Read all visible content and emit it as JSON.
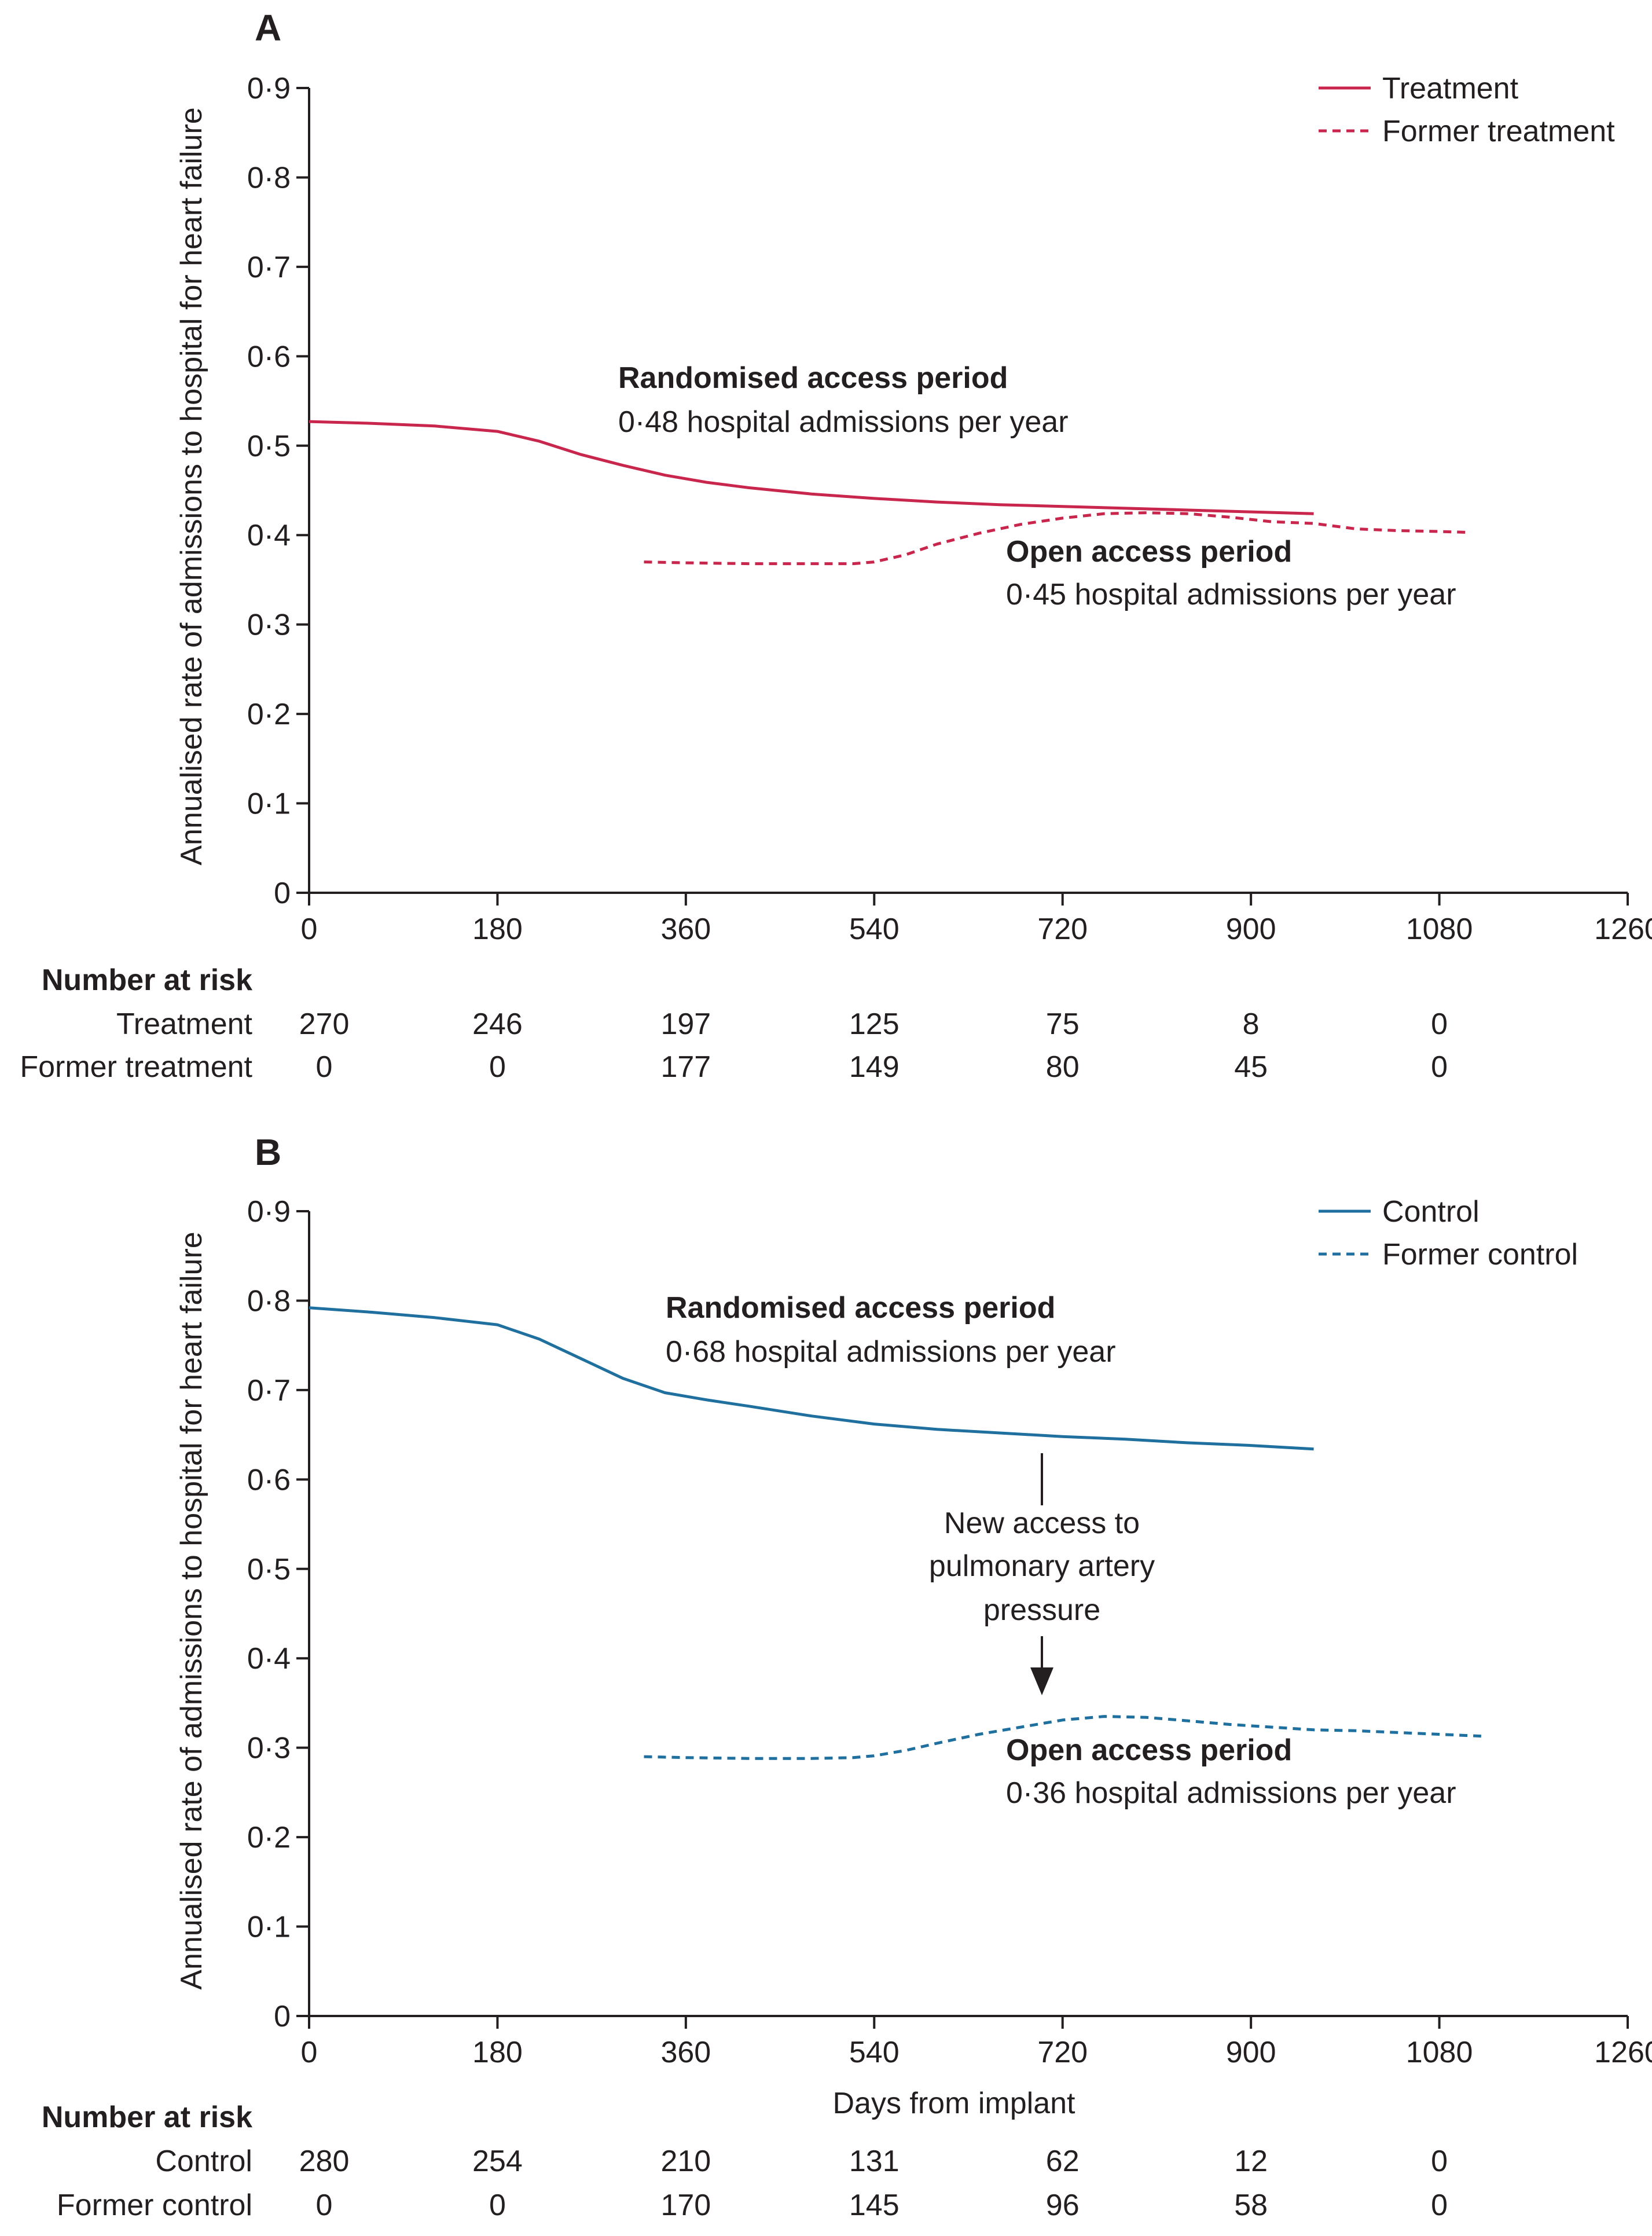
{
  "chart_data": [
    {
      "type": "line",
      "panel": "A",
      "ylabel": "Annualised rate of admissions to hospital for heart failure",
      "xlabel": "",
      "xlim": [
        0,
        1260
      ],
      "ylim": [
        0,
        0.9
      ],
      "x_ticks": [
        0,
        180,
        360,
        540,
        720,
        900,
        1080,
        1260
      ],
      "x_tick_labels": [
        "0",
        "180",
        "360",
        "540",
        "720",
        "900",
        "1080",
        "1260"
      ],
      "y_ticks": [
        0,
        0.1,
        0.2,
        0.3,
        0.4,
        0.5,
        0.6,
        0.7,
        0.8,
        0.9
      ],
      "y_tick_labels": [
        "0",
        "0·1",
        "0·2",
        "0·3",
        "0·4",
        "0·5",
        "0·6",
        "0·7",
        "0·8",
        "0·9"
      ],
      "grid": false,
      "legend_position": "top-right",
      "series": [
        {
          "name": "Treatment",
          "style": "solid",
          "color": "#c8264c",
          "x": [
            0,
            60,
            120,
            180,
            220,
            260,
            300,
            340,
            380,
            420,
            480,
            540,
            600,
            660,
            720,
            780,
            840,
            900,
            960
          ],
          "y": [
            0.527,
            0.525,
            0.522,
            0.516,
            0.505,
            0.49,
            0.478,
            0.467,
            0.459,
            0.453,
            0.446,
            0.441,
            0.437,
            0.434,
            0.432,
            0.43,
            0.428,
            0.426,
            0.424
          ]
        },
        {
          "name": "Former treatment",
          "style": "dashed",
          "color": "#c8264c",
          "x": [
            320,
            360,
            420,
            480,
            520,
            540,
            570,
            600,
            640,
            680,
            720,
            760,
            800,
            840,
            880,
            920,
            960,
            1000,
            1040,
            1080,
            1110
          ],
          "y": [
            0.37,
            0.369,
            0.368,
            0.368,
            0.368,
            0.37,
            0.378,
            0.39,
            0.402,
            0.412,
            0.419,
            0.424,
            0.425,
            0.424,
            0.42,
            0.415,
            0.413,
            0.407,
            0.405,
            0.404,
            0.403
          ]
        }
      ],
      "annotations": [
        {
          "title": "Randomised access period",
          "text": "0·48 hospital admissions per year"
        },
        {
          "title": "Open access period",
          "text": "0·45 hospital admissions per year"
        }
      ],
      "risk_table": {
        "heading": "Number at risk",
        "rows": [
          {
            "label": "Treatment",
            "values": [
              "270",
              "246",
              "197",
              "125",
              "75",
              "8",
              "0"
            ]
          },
          {
            "label": "Former treatment",
            "values": [
              "0",
              "0",
              "177",
              "149",
              "80",
              "45",
              "0"
            ]
          }
        ]
      }
    },
    {
      "type": "line",
      "panel": "B",
      "ylabel": "Annualised rate of admissions to hospital for heart failure",
      "xlabel": "Days from implant",
      "xlim": [
        0,
        1260
      ],
      "ylim": [
        0,
        0.9
      ],
      "x_ticks": [
        0,
        180,
        360,
        540,
        720,
        900,
        1080,
        1260
      ],
      "x_tick_labels": [
        "0",
        "180",
        "360",
        "540",
        "720",
        "900",
        "1080",
        "1260"
      ],
      "y_ticks": [
        0,
        0.1,
        0.2,
        0.3,
        0.4,
        0.5,
        0.6,
        0.7,
        0.8,
        0.9
      ],
      "y_tick_labels": [
        "0",
        "0·1",
        "0·2",
        "0·3",
        "0·4",
        "0·5",
        "0·6",
        "0·7",
        "0·8",
        "0·9"
      ],
      "grid": false,
      "legend_position": "top-right",
      "series": [
        {
          "name": "Control",
          "style": "solid",
          "color": "#1f6f9f",
          "x": [
            0,
            60,
            120,
            180,
            220,
            260,
            300,
            340,
            380,
            420,
            480,
            540,
            600,
            660,
            720,
            780,
            840,
            900,
            960
          ],
          "y": [
            0.792,
            0.787,
            0.781,
            0.773,
            0.757,
            0.735,
            0.713,
            0.697,
            0.689,
            0.682,
            0.671,
            0.662,
            0.656,
            0.652,
            0.648,
            0.645,
            0.641,
            0.638,
            0.634
          ]
        },
        {
          "name": "Former control",
          "style": "dashed",
          "color": "#1f6f9f",
          "x": [
            320,
            360,
            420,
            480,
            520,
            540,
            570,
            600,
            640,
            680,
            720,
            760,
            800,
            840,
            880,
            920,
            960,
            1000,
            1040,
            1080,
            1120
          ],
          "y": [
            0.29,
            0.289,
            0.288,
            0.288,
            0.289,
            0.291,
            0.297,
            0.305,
            0.315,
            0.323,
            0.331,
            0.335,
            0.334,
            0.33,
            0.326,
            0.323,
            0.32,
            0.319,
            0.317,
            0.315,
            0.313
          ]
        }
      ],
      "annotations": [
        {
          "title": "Randomised access period",
          "text": "0·68 hospital admissions per year"
        },
        {
          "title": "Open access period",
          "text": "0·36 hospital admissions per year"
        },
        {
          "lines": [
            "New access to",
            "pulmonary artery",
            "pressure"
          ],
          "x": 720
        }
      ],
      "risk_table": {
        "heading": "Number at risk",
        "rows": [
          {
            "label": "Control",
            "values": [
              "280",
              "254",
              "210",
              "131",
              "62",
              "12",
              "0"
            ]
          },
          {
            "label": "Former control",
            "values": [
              "0",
              "0",
              "170",
              "145",
              "96",
              "58",
              "0"
            ]
          }
        ]
      }
    }
  ]
}
